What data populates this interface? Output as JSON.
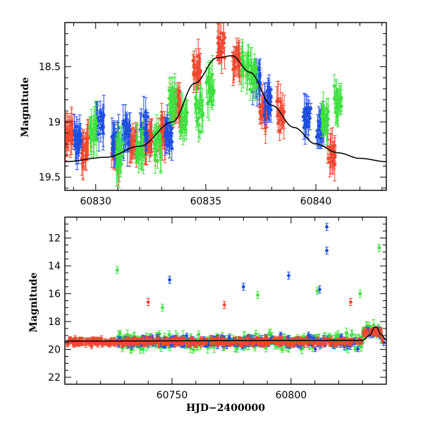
{
  "colors": {
    "blue": "#1f4fe0",
    "red": "#f04830",
    "green": "#40e040",
    "model": "#000000"
  },
  "chart_data": [
    {
      "type": "scatter",
      "panel": "top",
      "xlabel": "",
      "ylabel": "Magnitude",
      "xlim": [
        60828.6,
        60843.2
      ],
      "ylim": [
        19.62,
        18.1
      ],
      "y_inverted": true,
      "xticks": [
        60830,
        60835,
        60840
      ],
      "yticks": [
        18.5,
        19,
        19.5
      ],
      "grid": false,
      "model_curve": {
        "x": [
          60828.6,
          60830.5,
          60832,
          60833.5,
          60834.5,
          60835.5,
          60836.2,
          60837,
          60838,
          60839,
          60840,
          60841,
          60842,
          60843.2
        ],
        "y": [
          19.36,
          19.32,
          19.22,
          19.0,
          18.65,
          18.42,
          18.4,
          18.55,
          18.85,
          19.05,
          19.2,
          19.28,
          19.33,
          19.36
        ]
      },
      "series": [
        {
          "color": "red",
          "clusters": [
            [
              60828.8,
              19.1
            ],
            [
              60829.5,
              19.25
            ],
            [
              60830.9,
              19.3
            ],
            [
              60831.7,
              19.2
            ],
            [
              60832.4,
              19.15
            ],
            [
              60833.0,
              19.1
            ],
            [
              60833.7,
              18.85
            ],
            [
              60834.6,
              18.55
            ],
            [
              60835.7,
              18.3
            ],
            [
              60836.4,
              18.45
            ],
            [
              60837.6,
              18.9
            ],
            [
              60838.4,
              18.95
            ],
            [
              60840.7,
              19.3
            ]
          ]
        },
        {
          "color": "blue",
          "clusters": [
            [
              60829.2,
              19.15
            ],
            [
              60830.2,
              19.0
            ],
            [
              60830.9,
              19.2
            ],
            [
              60831.4,
              19.1
            ],
            [
              60832.2,
              19.05
            ],
            [
              60833.3,
              19.1
            ],
            [
              60837.3,
              18.6
            ],
            [
              60837.8,
              18.8
            ],
            [
              60839.6,
              18.95
            ],
            [
              60840.2,
              19.05
            ]
          ]
        },
        {
          "color": "green",
          "clusters": [
            [
              60829.9,
              19.1
            ],
            [
              60831.1,
              19.3
            ],
            [
              60832.0,
              19.25
            ],
            [
              60832.8,
              19.2
            ],
            [
              60833.5,
              18.8
            ],
            [
              60834.0,
              19.0
            ],
            [
              60834.7,
              18.9
            ],
            [
              60835.2,
              18.7
            ],
            [
              60836.8,
              18.5
            ],
            [
              60837.2,
              18.6
            ],
            [
              60840.4,
              19.0
            ],
            [
              60841.0,
              18.8
            ]
          ]
        }
      ]
    },
    {
      "type": "scatter",
      "panel": "bottom",
      "xlabel": "HJD−2400000",
      "ylabel": "Magnitude",
      "xlim": [
        60705,
        60840
      ],
      "ylim": [
        22.5,
        10.5
      ],
      "y_inverted": true,
      "xticks": [
        60750,
        60800
      ],
      "yticks": [
        12,
        14,
        16,
        18,
        20,
        22
      ],
      "grid": false,
      "model_curve": {
        "x": [
          60705,
          60830,
          60833,
          60835,
          60836,
          60837.5,
          60840
        ],
        "y": [
          19.4,
          19.35,
          19.0,
          18.4,
          18.4,
          18.9,
          19.3
        ]
      },
      "outliers": [
        {
          "color": "green",
          "x": 60727,
          "y": 14.3
        },
        {
          "color": "blue",
          "x": 60749,
          "y": 15.0
        },
        {
          "color": "red",
          "x": 60740,
          "y": 16.6
        },
        {
          "color": "blue",
          "x": 60780,
          "y": 15.5
        },
        {
          "color": "green",
          "x": 60786,
          "y": 16.1
        },
        {
          "color": "blue",
          "x": 60799,
          "y": 14.7
        },
        {
          "color": "blue",
          "x": 60812,
          "y": 15.7
        },
        {
          "color": "blue",
          "x": 60815,
          "y": 12.9
        },
        {
          "color": "blue",
          "x": 60815,
          "y": 11.2
        },
        {
          "color": "green",
          "x": 60837,
          "y": 12.7
        },
        {
          "color": "red",
          "x": 60772,
          "y": 16.8
        },
        {
          "color": "red",
          "x": 60825,
          "y": 16.6
        },
        {
          "color": "green",
          "x": 60811,
          "y": 15.8
        },
        {
          "color": "green",
          "x": 60746,
          "y": 17.0
        },
        {
          "color": "green",
          "x": 60829,
          "y": 16.0
        }
      ]
    }
  ]
}
